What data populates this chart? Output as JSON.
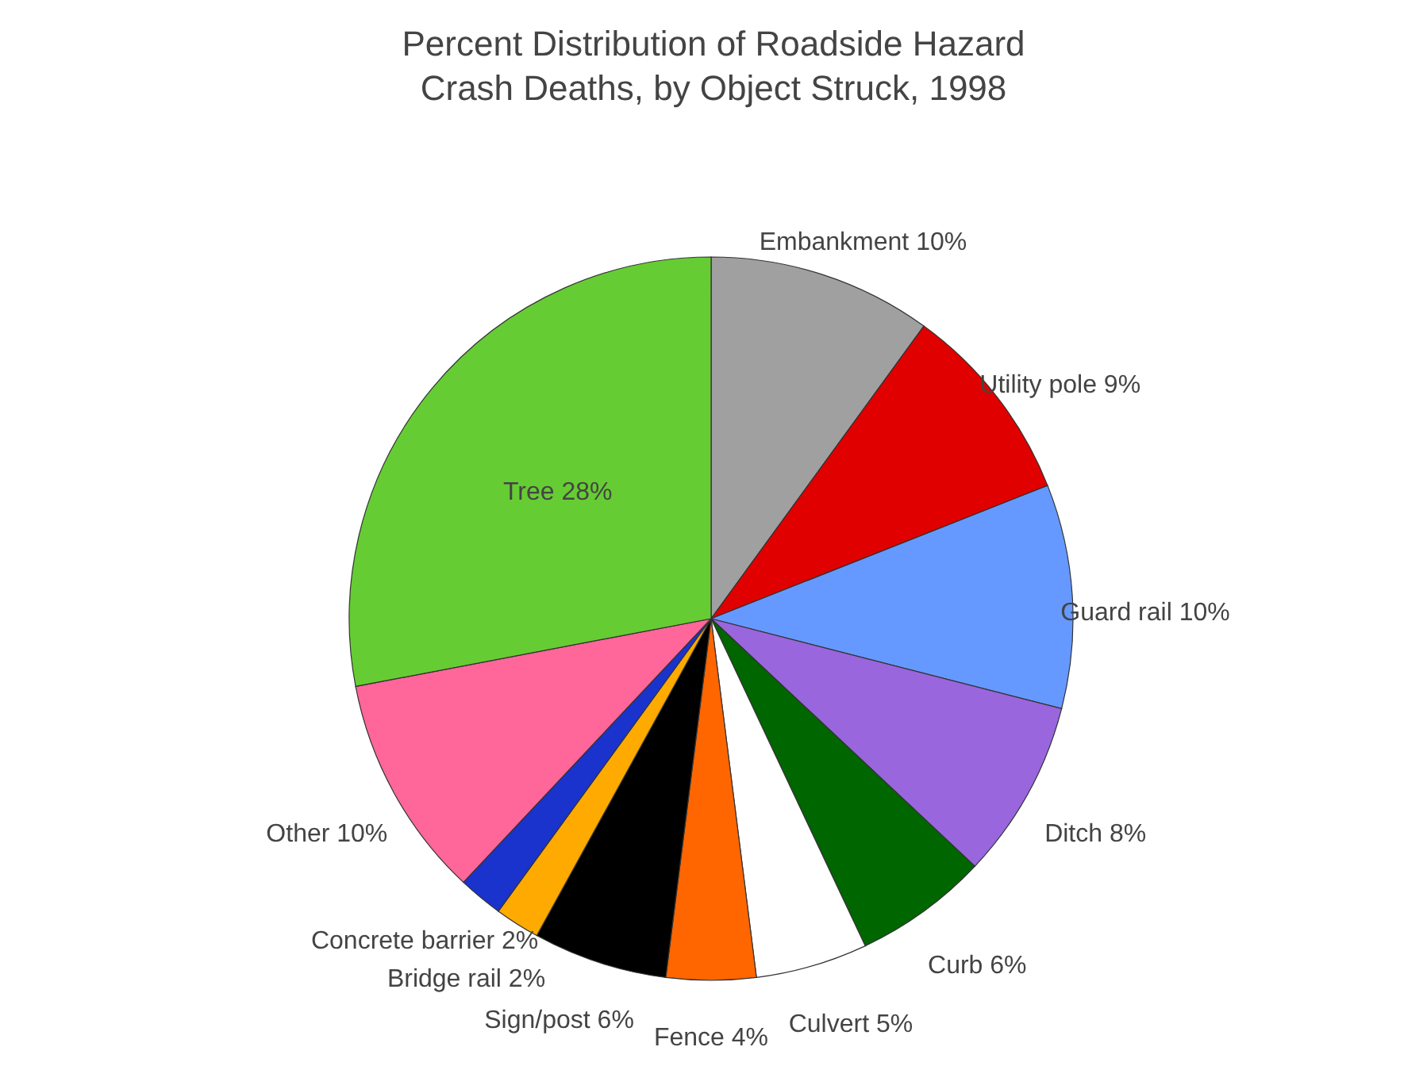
{
  "chart_data": {
    "type": "pie",
    "title": "Percent Distribution of Roadside Hazard\nCrash Deaths, by Object Struck, 1998",
    "categories": [
      "Embankment",
      "Utility pole",
      "Guard rail",
      "Ditch",
      "Curb",
      "Culvert",
      "Fence",
      "Sign/post",
      "Bridge rail",
      "Concrete barrier",
      "Other",
      "Tree"
    ],
    "values": [
      10,
      9,
      10,
      8,
      6,
      5,
      4,
      6,
      2,
      2,
      10,
      28
    ],
    "value_labels": [
      "10%",
      "9%",
      "10%",
      "8%",
      "6%",
      "5%",
      "4%",
      "6%",
      "2%",
      "2%",
      "10%",
      "28%"
    ],
    "colors": [
      "#a0a0a0",
      "#e00000",
      "#6699ff",
      "#9966dd",
      "#006600",
      "#ffffff",
      "#ff6600",
      "#000000",
      "#ffaa00",
      "#1a33cc",
      "#ff6699",
      "#66cc33"
    ]
  }
}
